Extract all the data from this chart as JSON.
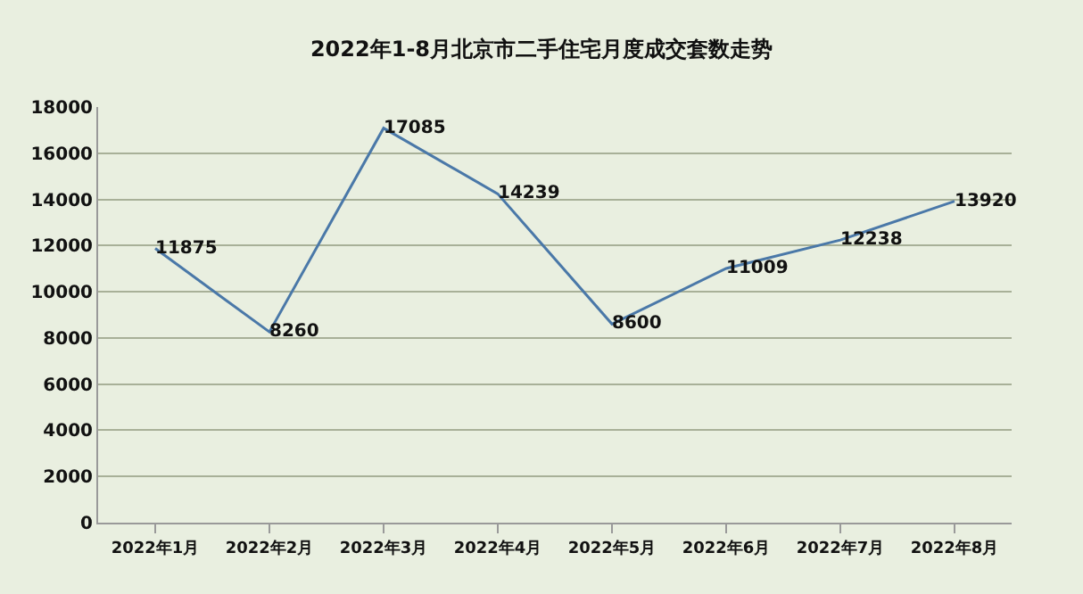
{
  "chart_data": {
    "type": "line",
    "title": "2022年1-8月北京市二手住宅月度成交套数走势",
    "categories": [
      "2022年1月",
      "2022年2月",
      "2022年3月",
      "2022年4月",
      "2022年5月",
      "2022年6月",
      "2022年7月",
      "2022年8月"
    ],
    "series": [
      {
        "color": "#4a78a8",
        "values": [
          11875,
          8260,
          17085,
          14239,
          8600,
          11009,
          12238,
          13920
        ]
      }
    ],
    "ylim": [
      0,
      18000
    ],
    "yticks": [
      0,
      2000,
      4000,
      6000,
      8000,
      10000,
      12000,
      14000,
      16000,
      18000
    ],
    "grid": "y",
    "data_labels": true,
    "marker": "none",
    "line_style": "solid"
  }
}
